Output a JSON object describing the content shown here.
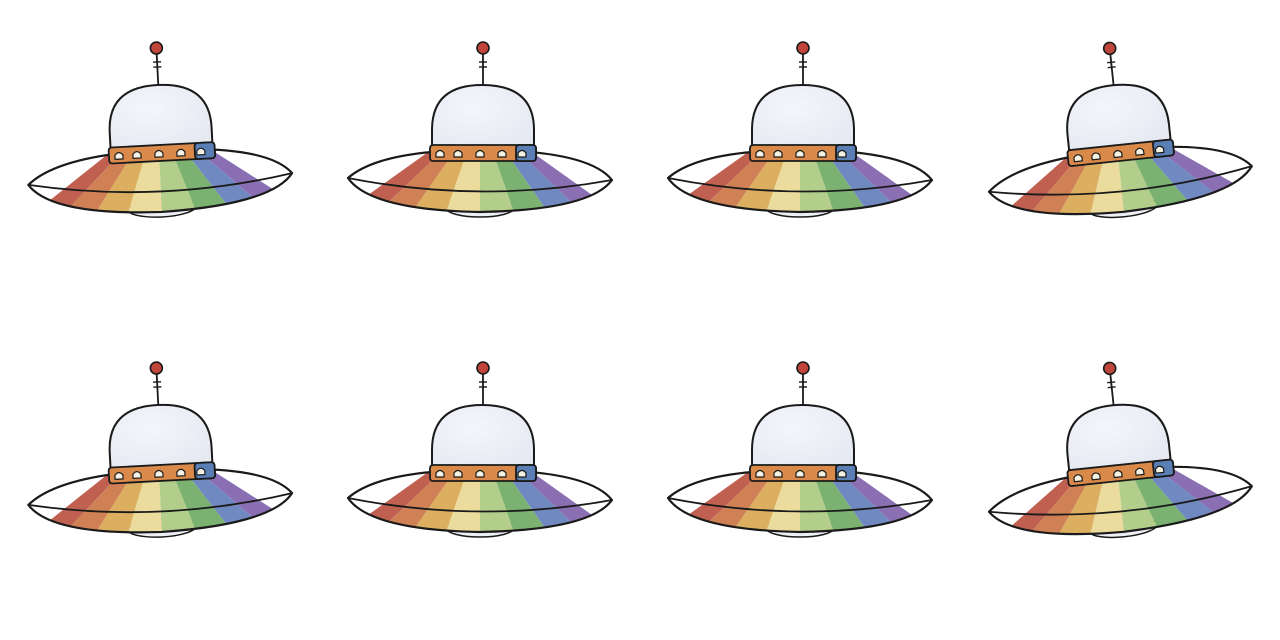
{
  "sprite_sheet": {
    "frame_count": 8,
    "rows": 2,
    "columns": 4,
    "frames": [
      {
        "index": 1,
        "tilt": "left-low"
      },
      {
        "index": 2,
        "tilt": "level"
      },
      {
        "index": 3,
        "tilt": "level"
      },
      {
        "index": 4,
        "tilt": "right-high"
      },
      {
        "index": 5,
        "tilt": "left-low"
      },
      {
        "index": 6,
        "tilt": "level"
      },
      {
        "index": 7,
        "tilt": "level"
      },
      {
        "index": 8,
        "tilt": "right-high"
      }
    ]
  },
  "ufo": {
    "icon": "flying-saucer-icon",
    "colors": {
      "outline": "#1a1a1a",
      "dome": "#e6e9f2",
      "dome_highlight": "#f4f6fb",
      "antenna_bulb": "#c0463a",
      "band": "#d98a4a",
      "band_blue": "#5a7fb5",
      "window": "#f7f3e4",
      "underside": "#eef0f5",
      "rainbow": [
        "#b84a3a",
        "#c9703e",
        "#d6a34a",
        "#e9d890",
        "#a8c87a",
        "#6aa85e",
        "#5d79b8",
        "#7a5ca8"
      ]
    }
  }
}
